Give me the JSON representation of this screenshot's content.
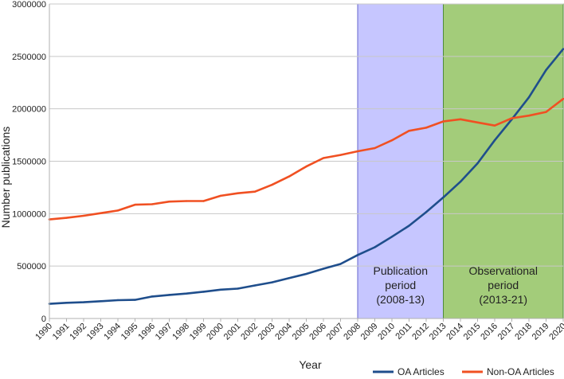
{
  "chart_data": {
    "type": "line",
    "title": "",
    "xlabel": "Year",
    "ylabel": "Number publications",
    "ylim": [
      0,
      3000000
    ],
    "yticks": [
      "0",
      "500000",
      "1000000",
      "1500000",
      "2000000",
      "2500000",
      "3000000"
    ],
    "x": [
      "1990",
      "1991",
      "1992",
      "1993",
      "1994",
      "1995",
      "1996",
      "1997",
      "1998",
      "1999",
      "2000",
      "2001",
      "2002",
      "2003",
      "2004",
      "2005",
      "2006",
      "2007",
      "2008",
      "2009",
      "2010",
      "2011",
      "2012",
      "2013",
      "2014",
      "2015",
      "2016",
      "2017",
      "2018",
      "2019",
      "2020"
    ],
    "series": [
      {
        "name": "OA Articles",
        "color": "#1f4e8c",
        "values": [
          140000,
          150000,
          155000,
          165000,
          175000,
          178000,
          210000,
          225000,
          238000,
          255000,
          275000,
          285000,
          315000,
          345000,
          385000,
          425000,
          475000,
          520000,
          605000,
          680000,
          780000,
          885000,
          1015000,
          1155000,
          1305000,
          1480000,
          1700000,
          1900000,
          2110000,
          2370000,
          2570000
        ]
      },
      {
        "name": "Non-OA Articles",
        "color": "#f05022",
        "values": [
          945000,
          960000,
          980000,
          1005000,
          1030000,
          1085000,
          1090000,
          1115000,
          1120000,
          1120000,
          1170000,
          1195000,
          1210000,
          1275000,
          1355000,
          1450000,
          1530000,
          1560000,
          1595000,
          1625000,
          1700000,
          1790000,
          1820000,
          1880000,
          1900000,
          1870000,
          1840000,
          1910000,
          1935000,
          1970000,
          2095000
        ]
      }
    ],
    "regions": [
      {
        "name": "publication-period",
        "label_lines": [
          "Publication",
          "period",
          "(2008-13)"
        ],
        "start": "2008",
        "end": "2013",
        "color": "#c6c6ff",
        "border": "#6666cc"
      },
      {
        "name": "observational-period",
        "label_lines": [
          "Observational",
          "period",
          "(2013-21)"
        ],
        "start": "2013",
        "end": "2020",
        "color": "#a3cc7a",
        "border": "#4e8a3a"
      }
    ],
    "legend": {
      "position": "bottom-right"
    }
  }
}
